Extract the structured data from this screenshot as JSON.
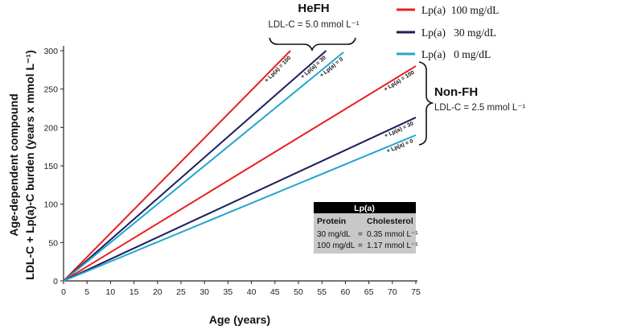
{
  "chart_data": {
    "type": "line",
    "xlabel": "Age (years)",
    "ylabel_line1": "Age-dependent compound",
    "ylabel_line2": "LDL-C + Lp(a)-C burden (years x mmol L⁻¹)",
    "xlim": [
      0,
      75
    ],
    "ylim": [
      0,
      300
    ],
    "x_ticks": [
      0,
      5,
      10,
      15,
      20,
      25,
      30,
      35,
      40,
      45,
      50,
      55,
      60,
      65,
      70,
      75
    ],
    "y_ticks": [
      0,
      50,
      100,
      150,
      200,
      250,
      300
    ],
    "grid": false,
    "legend_position": "top-right",
    "legend": [
      {
        "label": "Lp(a)  100 mg/dL",
        "color": "#e8201f"
      },
      {
        "label": "Lp(a)   30 mg/dL",
        "color": "#1b1f5e"
      },
      {
        "label": "Lp(a)   0 mg/dL",
        "color": "#22a6cf"
      }
    ],
    "groups": [
      {
        "title": "HeFH",
        "subtitle": "LDL-C = 5.0 mmol L⁻¹"
      },
      {
        "title": "Non-FH",
        "subtitle": "LDL-C = 2.5 mmol L⁻¹"
      }
    ],
    "series": [
      {
        "name": "HeFH Lp(a) 100",
        "label": "+ Lp(a) = 100",
        "color": "#e8201f",
        "x": [
          0,
          48.3
        ],
        "y": [
          0,
          300
        ]
      },
      {
        "name": "HeFH Lp(a) 30",
        "label": "+ Lp(a) = 30",
        "color": "#1b1f5e",
        "x": [
          0,
          55.9
        ],
        "y": [
          0,
          300
        ]
      },
      {
        "name": "HeFH Lp(a) 0",
        "label": "+ Lp(a) = 0",
        "color": "#22a6cf",
        "x": [
          0,
          59.6
        ],
        "y": [
          0,
          298
        ]
      },
      {
        "name": "Non-FH Lp(a) 100",
        "label": "+ Lp(a) = 100",
        "color": "#e8201f",
        "x": [
          0,
          75
        ],
        "y": [
          0,
          280
        ]
      },
      {
        "name": "Non-FH Lp(a) 30",
        "label": "+ Lp(a) = 30",
        "color": "#1b1f5e",
        "x": [
          0,
          75
        ],
        "y": [
          0,
          213
        ]
      },
      {
        "name": "Non-FH Lp(a) 0",
        "label": "+ Lp(a) = 0",
        "color": "#22a6cf",
        "x": [
          0,
          75
        ],
        "y": [
          0,
          190
        ]
      }
    ],
    "table": {
      "title": "Lp(a)",
      "columns": [
        "Protein",
        "Cholesterol"
      ],
      "rows": [
        {
          "protein": "30 mg/dL",
          "eq": "=",
          "cholesterol": "0.35 mmol L⁻¹"
        },
        {
          "protein": "100 mg/dL",
          "eq": "=",
          "cholesterol": "1.17 mmol L⁻¹"
        }
      ]
    }
  }
}
